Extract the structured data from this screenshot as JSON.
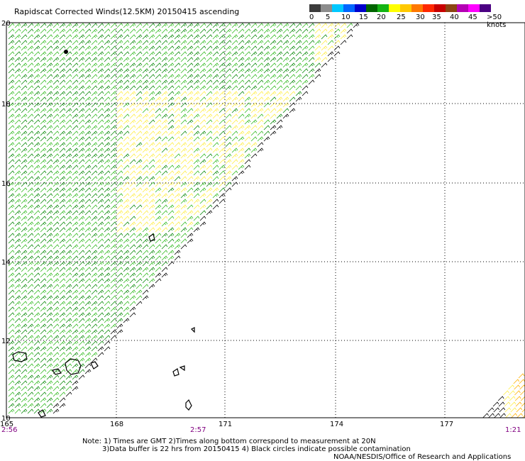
{
  "title": "Rapidscat Corrected Winds(12.5KM) 20150415 ascending",
  "legend": {
    "colors": [
      "#3c3c3c",
      "#8c8c8c",
      "#00c8ff",
      "#0066ff",
      "#0000cc",
      "#006400",
      "#14b414",
      "#ffff00",
      "#ffc800",
      "#ff7800",
      "#ff2800",
      "#c80000",
      "#8b4513",
      "#b400b4",
      "#ff00ff",
      "#4b0082"
    ],
    "labels": [
      "0",
      "5",
      "10",
      "15",
      "20",
      "25",
      "30",
      "35",
      "40",
      "45",
      ">50 knots"
    ]
  },
  "y_axis_labels": [
    "20",
    "18",
    "16",
    "14",
    "12",
    "10"
  ],
  "x_axis_labels": [
    "165",
    "168",
    "171",
    "174",
    "177"
  ],
  "times": {
    "left": "2:56",
    "middle": "2:57",
    "right": "1:21"
  },
  "notes": [
    "Note: 1) Times are GMT 2)Times along bottom correspond to measurement at 20N",
    "3)Data buffer is 22 hrs from 20150415 4) Black circles indicate possible contamination"
  ],
  "credit": "NOAA/NESDIS/Office of Research and Applications"
}
